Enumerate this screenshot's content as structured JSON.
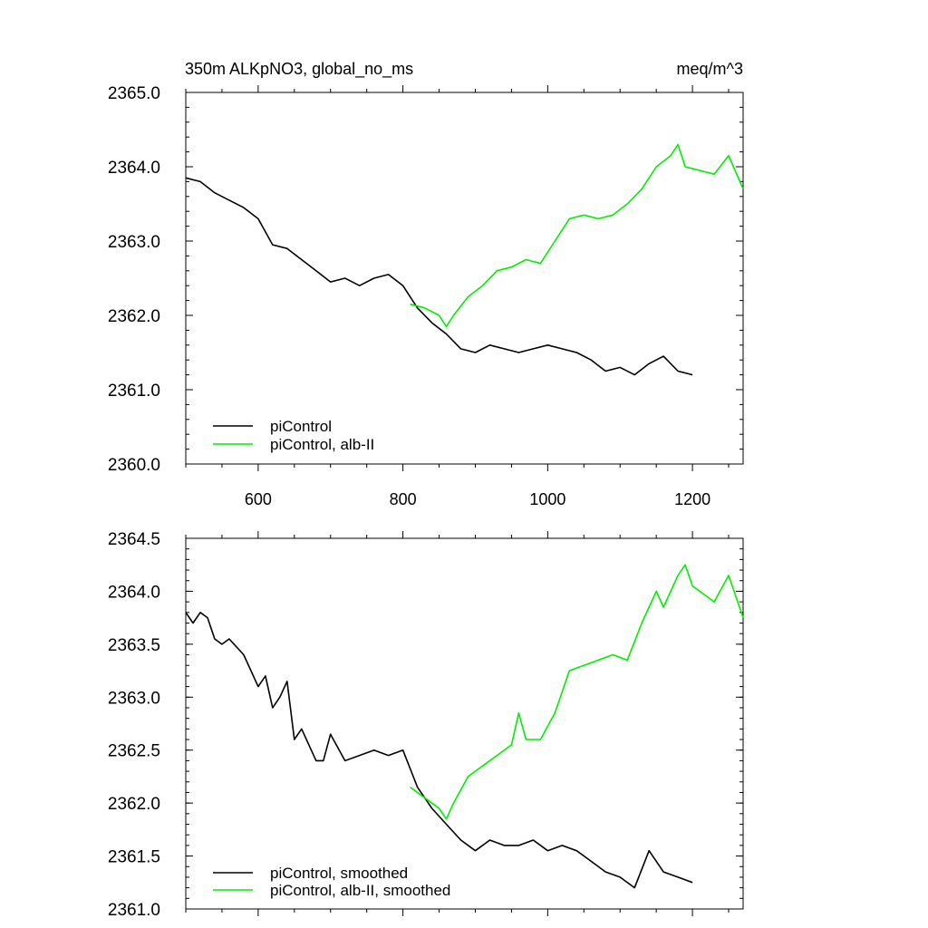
{
  "chart_data": [
    {
      "type": "line",
      "title_left": "350m ALKpNO3, global_no_ms",
      "title_right": "meq/m^3",
      "xlabel": "",
      "ylabel": "",
      "xlim": [
        500,
        1270
      ],
      "ylim": [
        2360.0,
        2365.0
      ],
      "x_ticks": [
        600,
        800,
        1000,
        1200
      ],
      "x_tick_labels": [
        "600",
        "800",
        "1000",
        "1200"
      ],
      "y_ticks": [
        2360,
        2361,
        2362,
        2363,
        2364,
        2365
      ],
      "y_tick_labels": [
        "2360.0",
        "2361.0",
        "2362.0",
        "2363.0",
        "2364.0",
        "2365.0"
      ],
      "grid": false,
      "legend_position": "bottom-left",
      "series": [
        {
          "name": "piControl",
          "color": "#000000",
          "x": [
            500,
            520,
            540,
            560,
            580,
            600,
            620,
            640,
            660,
            680,
            700,
            720,
            740,
            760,
            780,
            800,
            820,
            840,
            860,
            880,
            900,
            920,
            940,
            960,
            980,
            1000,
            1020,
            1040,
            1060,
            1080,
            1100,
            1120,
            1140,
            1160,
            1180,
            1200
          ],
          "y": [
            2363.85,
            2363.8,
            2363.65,
            2363.55,
            2363.45,
            2363.3,
            2362.95,
            2362.9,
            2362.75,
            2362.6,
            2362.45,
            2362.5,
            2362.4,
            2362.5,
            2362.55,
            2362.4,
            2362.1,
            2361.9,
            2361.75,
            2361.55,
            2361.5,
            2361.6,
            2361.55,
            2361.5,
            2361.55,
            2361.6,
            2361.55,
            2361.5,
            2361.4,
            2361.25,
            2361.3,
            2361.2,
            2361.35,
            2361.45,
            2361.25,
            2361.2
          ]
        },
        {
          "name": "piControl, alb-II",
          "color": "#00ee00",
          "x": [
            810,
            830,
            850,
            860,
            870,
            890,
            910,
            930,
            950,
            970,
            990,
            1010,
            1030,
            1050,
            1070,
            1090,
            1110,
            1130,
            1150,
            1170,
            1180,
            1190,
            1210,
            1230,
            1250,
            1270
          ],
          "y": [
            2362.15,
            2362.1,
            2362.0,
            2361.85,
            2362.0,
            2362.25,
            2362.4,
            2362.6,
            2362.65,
            2362.75,
            2362.7,
            2363.0,
            2363.3,
            2363.35,
            2363.3,
            2363.35,
            2363.5,
            2363.7,
            2364.0,
            2364.15,
            2364.3,
            2364.0,
            2363.95,
            2363.9,
            2364.15,
            2363.7
          ]
        }
      ]
    },
    {
      "type": "line",
      "xlabel": "",
      "ylabel": "",
      "xlim": [
        500,
        1270
      ],
      "ylim": [
        2361.0,
        2364.5
      ],
      "x_ticks": [
        600,
        800,
        1000,
        1200
      ],
      "y_ticks": [
        2361.0,
        2361.5,
        2362.0,
        2362.5,
        2363.0,
        2363.5,
        2364.0,
        2364.5
      ],
      "y_tick_labels": [
        "2361.0",
        "2361.5",
        "2362.0",
        "2362.5",
        "2363.0",
        "2363.5",
        "2364.0",
        "2364.5"
      ],
      "grid": false,
      "legend_position": "bottom-left",
      "series": [
        {
          "name": "piControl, smoothed",
          "color": "#000000",
          "x": [
            500,
            510,
            520,
            530,
            540,
            550,
            560,
            580,
            600,
            610,
            620,
            630,
            640,
            650,
            660,
            680,
            690,
            700,
            720,
            740,
            760,
            780,
            800,
            820,
            840,
            860,
            880,
            900,
            920,
            940,
            960,
            980,
            1000,
            1020,
            1040,
            1060,
            1080,
            1100,
            1120,
            1140,
            1160,
            1180,
            1200
          ],
          "y": [
            2363.8,
            2363.7,
            2363.8,
            2363.75,
            2363.55,
            2363.5,
            2363.55,
            2363.4,
            2363.1,
            2363.2,
            2362.9,
            2363.0,
            2363.15,
            2362.6,
            2362.7,
            2362.4,
            2362.4,
            2362.65,
            2362.4,
            2362.45,
            2362.5,
            2362.45,
            2362.5,
            2362.15,
            2361.95,
            2361.8,
            2361.65,
            2361.55,
            2361.65,
            2361.6,
            2361.6,
            2361.65,
            2361.55,
            2361.6,
            2361.55,
            2361.45,
            2361.35,
            2361.3,
            2361.2,
            2361.55,
            2361.35,
            2361.3,
            2361.25
          ]
        },
        {
          "name": "piControl, alb-II, smoothed",
          "color": "#00ee00",
          "x": [
            810,
            830,
            850,
            860,
            870,
            890,
            910,
            930,
            950,
            960,
            970,
            990,
            1010,
            1030,
            1050,
            1070,
            1090,
            1110,
            1130,
            1150,
            1160,
            1180,
            1190,
            1200,
            1210,
            1230,
            1250,
            1270
          ],
          "y": [
            2362.15,
            2362.05,
            2361.95,
            2361.85,
            2362.0,
            2362.25,
            2362.35,
            2362.45,
            2362.55,
            2362.85,
            2362.6,
            2362.6,
            2362.85,
            2363.25,
            2363.3,
            2363.35,
            2363.4,
            2363.35,
            2363.7,
            2364.0,
            2363.85,
            2364.15,
            2364.25,
            2364.05,
            2364.0,
            2363.9,
            2364.15,
            2363.75
          ]
        }
      ]
    }
  ]
}
